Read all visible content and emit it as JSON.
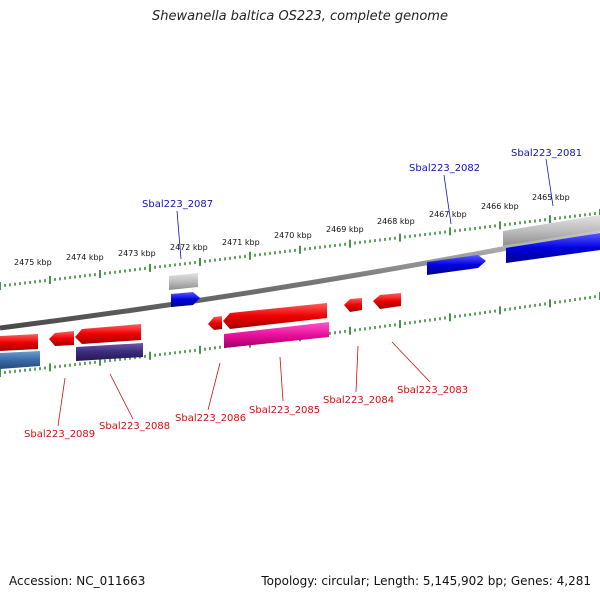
{
  "title": "Shewanella baltica OS223, complete genome",
  "footer": {
    "accession": "Accession: NC_011663",
    "summary": "Topology: circular; Length: 5,145,902 bp; Genes: 4,281"
  },
  "ruler": {
    "labels": [
      "2475 kbp",
      "2474 kbp",
      "2473 kbp",
      "2472 kbp",
      "2471 kbp",
      "2470 kbp",
      "2469 kbp",
      "2468 kbp",
      "2467 kbp",
      "2466 kbp",
      "2465 kbp"
    ]
  },
  "genes_plus": [
    "Sbal223_2087",
    "Sbal223_2082",
    "Sbal223_2081"
  ],
  "genes_minus": [
    "Sbal223_2089",
    "Sbal223_2088",
    "Sbal223_2086",
    "Sbal223_2085",
    "Sbal223_2084",
    "Sbal223_2083"
  ],
  "colors": {
    "plus_label": "#1010c0",
    "minus_label": "#cc1111",
    "tick": "#1a7a1a",
    "backbone": "#8a8a8a"
  }
}
